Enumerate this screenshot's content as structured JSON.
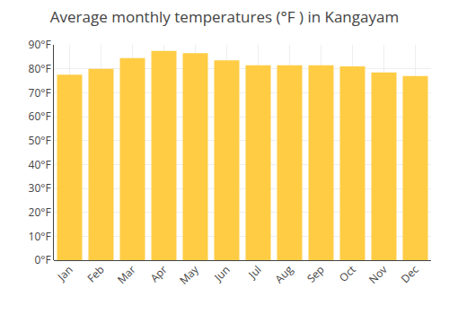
{
  "chart_data": {
    "type": "bar",
    "title": "Average monthly temperatures (°F ) in Kangayam",
    "categories": [
      "Jan",
      "Feb",
      "Mar",
      "Apr",
      "May",
      "Jun",
      "Jul",
      "Aug",
      "Sep",
      "Oct",
      "Nov",
      "Dec"
    ],
    "values": [
      77.5,
      80.0,
      84.5,
      87.5,
      86.5,
      83.5,
      81.5,
      81.5,
      81.5,
      81.0,
      78.5,
      77.0
    ],
    "color": "#FFCC44",
    "ylim": [
      0,
      90
    ],
    "yticks": [
      {
        "value": 0,
        "label": "0°F"
      },
      {
        "value": 10,
        "label": "10°F"
      },
      {
        "value": 20,
        "label": "20°F"
      },
      {
        "value": 30,
        "label": "30°F"
      },
      {
        "value": 40,
        "label": "40°F"
      },
      {
        "value": 50,
        "label": "50°F"
      },
      {
        "value": 60,
        "label": "60°F"
      },
      {
        "value": 70,
        "label": "70°F"
      },
      {
        "value": 80,
        "label": "80°F"
      },
      {
        "value": 90,
        "label": "90°F"
      }
    ],
    "grid": true
  }
}
